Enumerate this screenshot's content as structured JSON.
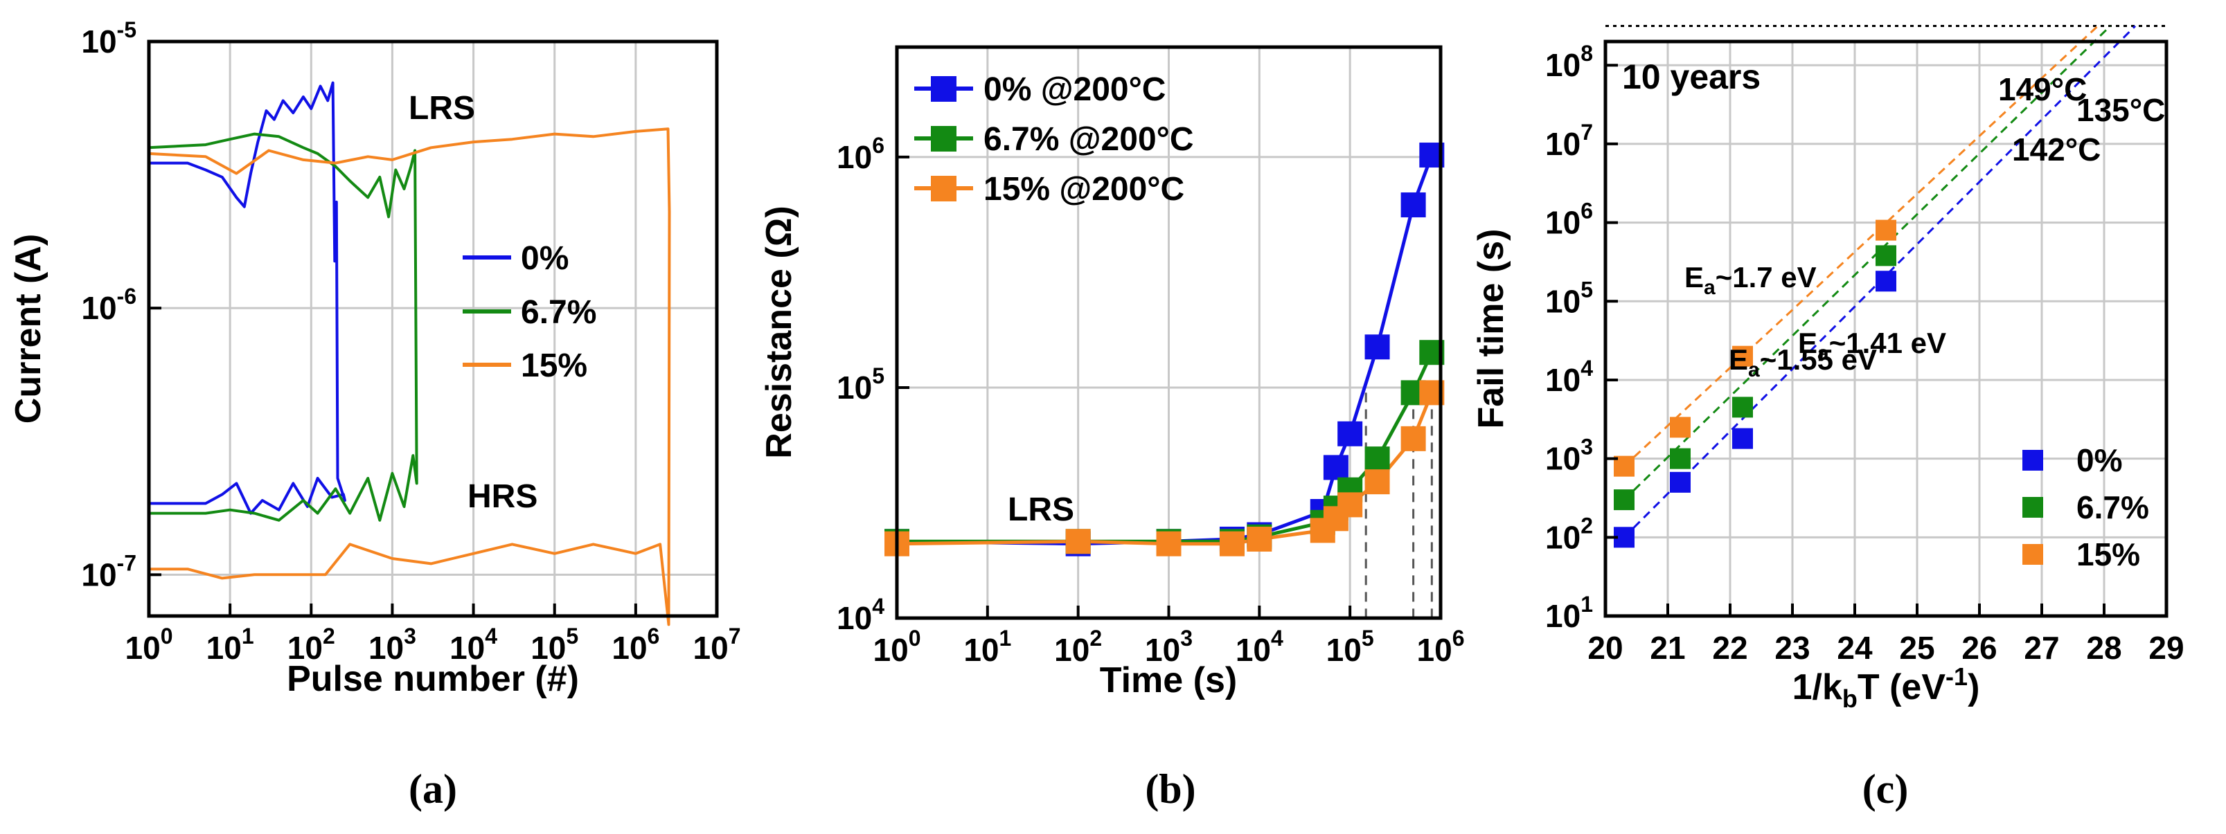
{
  "panel_labels": [
    "(a)",
    "(b)",
    "(c)"
  ],
  "colors": {
    "p0": "#1010e6",
    "p67": "#138a13",
    "p15": "#f58420",
    "grid": "#c8c8c8",
    "axis": "#000000"
  },
  "chart_data": [
    {
      "panel": "(a)",
      "type": "line",
      "xlabel": "Pulse number (#)",
      "ylabel": "Current (A)",
      "xscale": "log",
      "yscale": "log",
      "xlim": [
        1,
        10000000
      ],
      "ylim": [
        7e-08,
        1e-05
      ],
      "x_ticks": [
        {
          "b": "10",
          "e": "0"
        },
        {
          "b": "10",
          "e": "1"
        },
        {
          "b": "10",
          "e": "2"
        },
        {
          "b": "10",
          "e": "3"
        },
        {
          "b": "10",
          "e": "4"
        },
        {
          "b": "10",
          "e": "5"
        },
        {
          "b": "10",
          "e": "6"
        },
        {
          "b": "10",
          "e": "7"
        }
      ],
      "y_ticks": [
        {
          "b": "10",
          "e": "-7"
        },
        {
          "b": "10",
          "e": "-6"
        },
        {
          "b": "10",
          "e": "-5"
        }
      ],
      "grid": true,
      "legend": {
        "placement": "center-right",
        "entries": [
          "0%",
          "6.7%",
          "15%"
        ]
      },
      "annotations": [
        "LRS",
        "HRS"
      ],
      "series": [
        {
          "name": "0%",
          "color_key": "p0",
          "points": [
            [
              1,
              3.5e-06
            ],
            [
              3,
              3.5e-06
            ],
            [
              5,
              3.3e-06
            ],
            [
              8,
              3.1e-06
            ],
            [
              12,
              2.6e-06
            ],
            [
              15,
              2.4e-06
            ],
            [
              18,
              3.2e-06
            ],
            [
              22,
              4.2e-06
            ],
            [
              28,
              5.5e-06
            ],
            [
              35,
              5.1e-06
            ],
            [
              45,
              6e-06
            ],
            [
              60,
              5.4e-06
            ],
            [
              80,
              6.2e-06
            ],
            [
              100,
              5.6e-06
            ],
            [
              130,
              6.8e-06
            ],
            [
              160,
              6e-06
            ],
            [
              185,
              7e-06
            ],
            [
              195,
              1.5e-06
            ],
            [
              205,
              2.5e-06
            ],
            [
              212,
              2.3e-07
            ],
            [
              260,
              1.9e-07
            ],
            [
              250,
              2e-07
            ],
            [
              180,
              1.95e-07
            ],
            [
              120,
              2.3e-07
            ],
            [
              90,
              1.8e-07
            ],
            [
              60,
              2.2e-07
            ],
            [
              40,
              1.75e-07
            ],
            [
              25,
              1.9e-07
            ],
            [
              18,
              1.7e-07
            ],
            [
              12,
              2.2e-07
            ],
            [
              8,
              2e-07
            ],
            [
              5,
              1.85e-07
            ],
            [
              3,
              1.85e-07
            ],
            [
              1,
              1.85e-07
            ]
          ]
        },
        {
          "name": "6.7%",
          "color_key": "p67",
          "points": [
            [
              1,
              4e-06
            ],
            [
              5,
              4.1e-06
            ],
            [
              10,
              4.3e-06
            ],
            [
              20,
              4.5e-06
            ],
            [
              40,
              4.4e-06
            ],
            [
              80,
              4e-06
            ],
            [
              120,
              3.8e-06
            ],
            [
              200,
              3.4e-06
            ],
            [
              300,
              3e-06
            ],
            [
              500,
              2.6e-06
            ],
            [
              700,
              3.1e-06
            ],
            [
              900,
              2.2e-06
            ],
            [
              1100,
              3.3e-06
            ],
            [
              1400,
              2.8e-06
            ],
            [
              1700,
              3.4e-06
            ],
            [
              1900,
              3.9e-06
            ],
            [
              2000,
              2.2e-07
            ],
            [
              1800,
              2.8e-07
            ],
            [
              1400,
              1.8e-07
            ],
            [
              1000,
              2.4e-07
            ],
            [
              700,
              1.6e-07
            ],
            [
              500,
              2.3e-07
            ],
            [
              300,
              1.7e-07
            ],
            [
              200,
              2.1e-07
            ],
            [
              120,
              1.7e-07
            ],
            [
              80,
              1.9e-07
            ],
            [
              40,
              1.6e-07
            ],
            [
              20,
              1.7e-07
            ],
            [
              10,
              1.75e-07
            ],
            [
              5,
              1.7e-07
            ],
            [
              1,
              1.7e-07
            ]
          ]
        },
        {
          "name": "15%",
          "color_key": "p15",
          "points": [
            [
              1,
              3.8e-06
            ],
            [
              5,
              3.7e-06
            ],
            [
              12,
              3.2e-06
            ],
            [
              30,
              3.9e-06
            ],
            [
              80,
              3.6e-06
            ],
            [
              200,
              3.5e-06
            ],
            [
              500,
              3.7e-06
            ],
            [
              1000,
              3.6e-06
            ],
            [
              3000,
              4e-06
            ],
            [
              10000,
              4.2e-06
            ],
            [
              30000,
              4.3e-06
            ],
            [
              100000,
              4.5e-06
            ],
            [
              300000,
              4.4e-06
            ],
            [
              1000000,
              4.6e-06
            ],
            [
              2500000,
              4.7e-06
            ],
            [
              2600000,
              2.3e-06
            ],
            [
              2550000,
              6.5e-08
            ],
            [
              2000000,
              1.3e-07
            ],
            [
              1000000,
              1.2e-07
            ],
            [
              300000,
              1.3e-07
            ],
            [
              100000,
              1.2e-07
            ],
            [
              30000,
              1.3e-07
            ],
            [
              10000,
              1.2e-07
            ],
            [
              3000,
              1.1e-07
            ],
            [
              1000,
              1.15e-07
            ],
            [
              300,
              1.3e-07
            ],
            [
              150,
              1e-07
            ],
            [
              50,
              1e-07
            ],
            [
              20,
              1e-07
            ],
            [
              8,
              9.7e-08
            ],
            [
              3,
              1.05e-07
            ],
            [
              1,
              1.05e-07
            ]
          ]
        }
      ]
    },
    {
      "panel": "(b)",
      "type": "line",
      "xlabel": "Time (s)",
      "ylabel": "Resistance (Ω)",
      "xscale": "log",
      "yscale": "log",
      "xlim": [
        1,
        1000000
      ],
      "ylim": [
        10000,
        3000000
      ],
      "x_ticks": [
        {
          "b": "10",
          "e": "0"
        },
        {
          "b": "10",
          "e": "1"
        },
        {
          "b": "10",
          "e": "2"
        },
        {
          "b": "10",
          "e": "3"
        },
        {
          "b": "10",
          "e": "4"
        },
        {
          "b": "10",
          "e": "5"
        },
        {
          "b": "10",
          "e": "6"
        }
      ],
      "y_ticks": [
        {
          "b": "10",
          "e": "4"
        },
        {
          "b": "10",
          "e": "5"
        },
        {
          "b": "10",
          "e": "6"
        }
      ],
      "grid": true,
      "legend": {
        "placement": "top-left",
        "entries": [
          "0% @200°C",
          "6.7% @200°C",
          "15% @200°C"
        ]
      },
      "annotations": [
        "LRS"
      ],
      "fail_times": [
        150000,
        500000,
        800000
      ],
      "series": [
        {
          "name": "0% @200°C",
          "color_key": "p0",
          "points": [
            [
              1,
              21500
            ],
            [
              100,
              21000
            ],
            [
              1000,
              21500
            ],
            [
              5000,
              22000
            ],
            [
              10000,
              23000
            ],
            [
              50000,
              29000
            ],
            [
              70000,
              45000
            ],
            [
              100000,
              63000
            ],
            [
              200000,
              150000
            ],
            [
              500000,
              620000
            ],
            [
              800000,
              1020000
            ]
          ]
        },
        {
          "name": "6.7% @200°C",
          "color_key": "p67",
          "points": [
            [
              1,
              21500
            ],
            [
              100,
              21500
            ],
            [
              1000,
              21500
            ],
            [
              5000,
              21500
            ],
            [
              10000,
              22500
            ],
            [
              50000,
              26000
            ],
            [
              70000,
              30000
            ],
            [
              100000,
              36000
            ],
            [
              200000,
              49000
            ],
            [
              500000,
              95000
            ],
            [
              800000,
              142000
            ]
          ]
        },
        {
          "name": "15% @200°C",
          "color_key": "p15",
          "points": [
            [
              1,
              21000
            ],
            [
              100,
              21500
            ],
            [
              1000,
              21000
            ],
            [
              5000,
              21000
            ],
            [
              10000,
              22000
            ],
            [
              50000,
              24000
            ],
            [
              70000,
              27000
            ],
            [
              100000,
              31000
            ],
            [
              200000,
              39000
            ],
            [
              500000,
              60000
            ],
            [
              800000,
              95000
            ]
          ]
        }
      ]
    },
    {
      "panel": "(c)",
      "type": "scatter",
      "xlabel": "1/k",
      "xlabel_sub": "b",
      "xlabel_rest": "T (eV",
      "xlabel_sup": "-1",
      "xlabel_end": ")",
      "ylabel": "Fail time (s)",
      "xscale": "linear",
      "yscale": "log",
      "xlim": [
        20,
        29
      ],
      "ylim": [
        10,
        200000000
      ],
      "x_ticks": [
        "20",
        "21",
        "22",
        "23",
        "24",
        "25",
        "26",
        "27",
        "28",
        "29"
      ],
      "y_ticks": [
        {
          "b": "10",
          "e": "1"
        },
        {
          "b": "10",
          "e": "2"
        },
        {
          "b": "10",
          "e": "3"
        },
        {
          "b": "10",
          "e": "4"
        },
        {
          "b": "10",
          "e": "5"
        },
        {
          "b": "10",
          "e": "6"
        },
        {
          "b": "10",
          "e": "7"
        },
        {
          "b": "10",
          "e": "8"
        }
      ],
      "grid": true,
      "legend": {
        "placement": "bottom-right",
        "entries": [
          "0%",
          "6.7%",
          "15%"
        ]
      },
      "ten_years_label": "10 years",
      "ten_years_value": 315360000,
      "series": [
        {
          "name": "0%",
          "color_key": "p0",
          "points": [
            [
              20.3,
              100
            ],
            [
              21.2,
              500
            ],
            [
              22.2,
              1800
            ],
            [
              24.5,
              180000
            ]
          ],
          "fit_end": [
            28.5,
            315360000
          ],
          "ea": "~1.41 eV",
          "temp": "135°C"
        },
        {
          "name": "6.7%",
          "color_key": "p67",
          "points": [
            [
              20.3,
              300
            ],
            [
              21.2,
              1000
            ],
            [
              22.2,
              4500
            ],
            [
              24.5,
              380000
            ]
          ],
          "fit_end": [
            28.1,
            315360000
          ],
          "ea": "~1.55 eV",
          "temp": "142°C"
        },
        {
          "name": "15%",
          "color_key": "p15",
          "points": [
            [
              20.3,
              800
            ],
            [
              21.2,
              2500
            ],
            [
              22.2,
              20000
            ],
            [
              24.5,
              800000
            ]
          ],
          "fit_end": [
            27.9,
            315360000
          ],
          "ea": "~1.7 eV",
          "temp": "149°C"
        }
      ]
    }
  ]
}
